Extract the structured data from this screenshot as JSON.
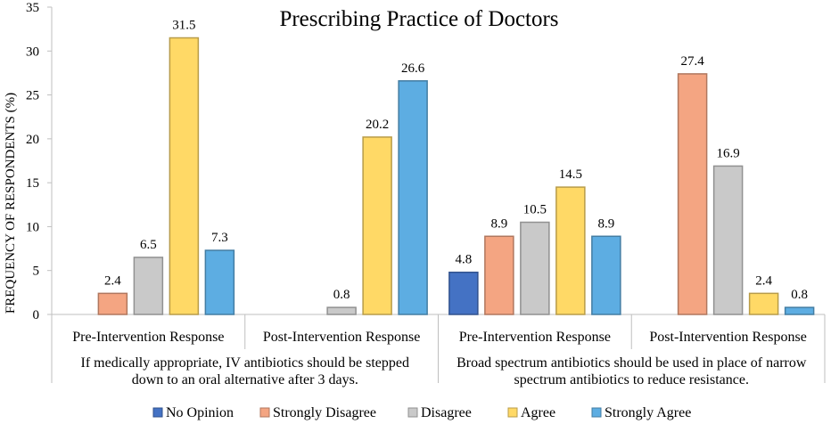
{
  "chart_data": {
    "type": "bar",
    "title": "Prescribing Practice of Doctors",
    "ylabel": "FREQUENCY OF RESPONDENTS (%)",
    "ylim": [
      0,
      35
    ],
    "yticks": [
      0,
      5,
      10,
      15,
      20,
      25,
      30,
      35
    ],
    "grid": false,
    "legend_position": "bottom",
    "categories": [
      "Pre-Intervention Response",
      "Post-Intervention Response",
      "Pre-Intervention Response",
      "Post-Intervention Response"
    ],
    "groups": [
      {
        "label_line1": "If medically appropriate, IV antibiotics should be stepped",
        "label_line2": "down to an oral alternative after 3 days."
      },
      {
        "label_line1": "Broad spectrum antibiotics should be used in place of narrow",
        "label_line2": "spectrum antibiotics to reduce resistance."
      }
    ],
    "series": [
      {
        "name": "No Opinion",
        "color": "#4472C4",
        "values": [
          null,
          null,
          4.8,
          null
        ]
      },
      {
        "name": "Strongly Disagree",
        "color": "#F4A582",
        "values": [
          2.4,
          null,
          8.9,
          27.4
        ]
      },
      {
        "name": "Disagree",
        "color": "#C9C9C9",
        "values": [
          6.5,
          0.8,
          10.5,
          16.9
        ]
      },
      {
        "name": "Agree",
        "color": "#FFD966",
        "values": [
          31.5,
          20.2,
          14.5,
          2.4
        ]
      },
      {
        "name": "Strongly Agree",
        "color": "#5DADE2",
        "values": [
          7.3,
          26.6,
          8.9,
          0.8
        ]
      }
    ]
  }
}
